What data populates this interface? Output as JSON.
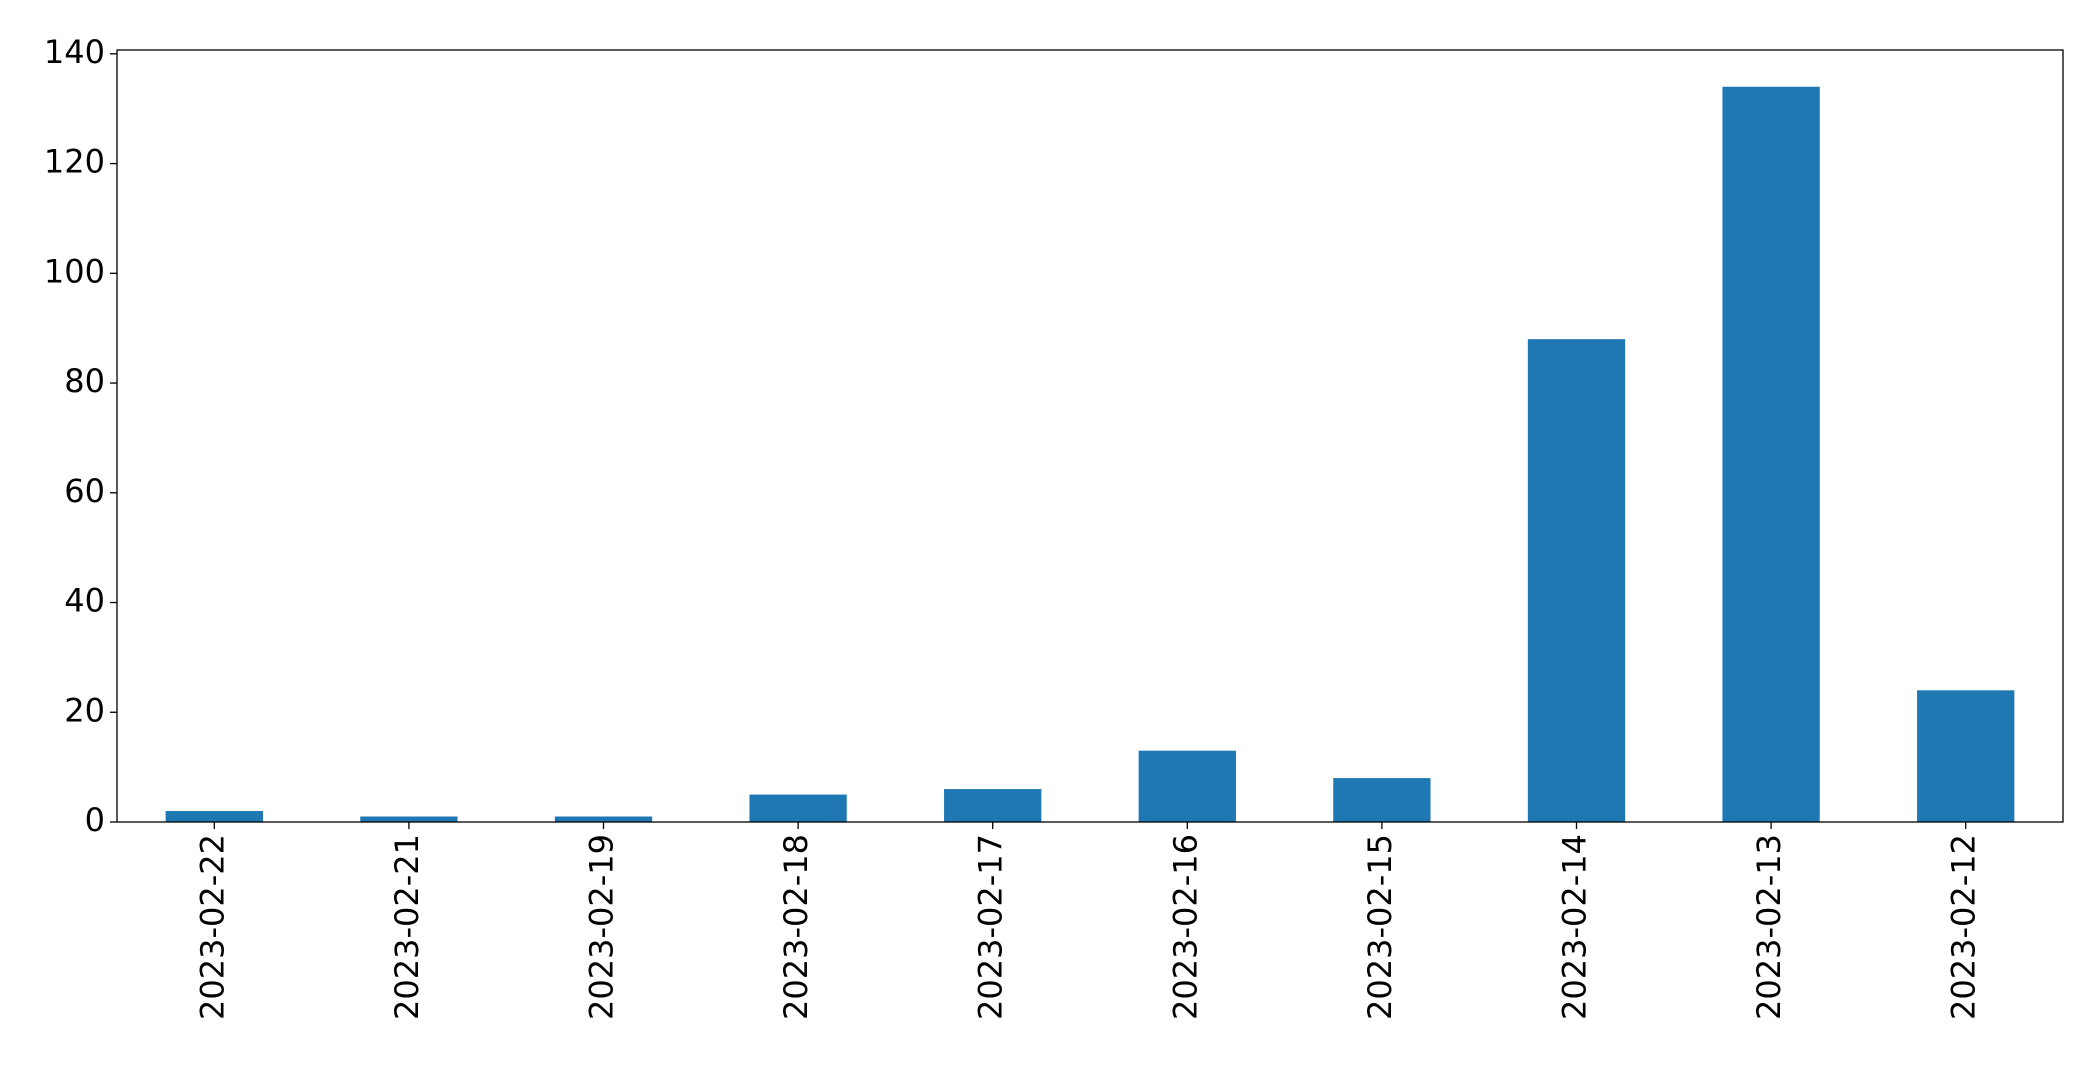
{
  "chart_data": {
    "type": "bar",
    "categories": [
      "2023-02-22",
      "2023-02-21",
      "2023-02-19",
      "2023-02-18",
      "2023-02-17",
      "2023-02-16",
      "2023-02-15",
      "2023-02-14",
      "2023-02-13",
      "2023-02-12"
    ],
    "values": [
      2,
      1,
      1,
      5,
      6,
      13,
      8,
      88,
      134,
      24
    ],
    "color": "#1f77b4",
    "ylim": [
      0,
      140.7
    ],
    "yticks": [
      0,
      20,
      40,
      60,
      80,
      100,
      120,
      140
    ],
    "grid": false
  }
}
